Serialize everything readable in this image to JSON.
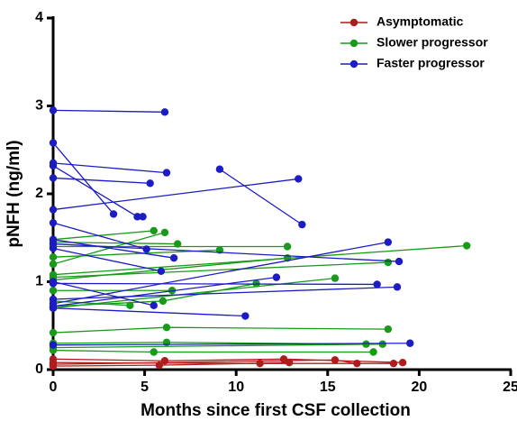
{
  "chart_data": {
    "type": "line",
    "xlabel": "Months since first CSF collection",
    "ylabel": "pNFH (ng/ml)",
    "xlim": [
      0,
      25
    ],
    "xticks": [
      0,
      5,
      10,
      15,
      20,
      25
    ],
    "ylim": [
      0,
      4
    ],
    "yticks": [
      0,
      1,
      2,
      3,
      4
    ],
    "legend": "upper right",
    "series": [
      {
        "name": "Asymptomatic",
        "color": "#b01c1c",
        "subjects": [
          {
            "x": [
              0,
              6.1,
              12.6,
              19.1
            ],
            "values": [
              0.12,
              0.1,
              0.12,
              0.08
            ]
          },
          {
            "x": [
              0,
              11.3,
              18.6
            ],
            "values": [
              0.08,
              0.07,
              0.07
            ]
          },
          {
            "x": [
              0,
              15.4,
              16.6
            ],
            "values": [
              0.06,
              0.11,
              0.07
            ]
          },
          {
            "x": [
              0,
              5.8,
              12.9
            ],
            "values": [
              0.04,
              0.05,
              0.08
            ]
          }
        ]
      },
      {
        "name": "Slower progressor",
        "color": "#1a9a1a",
        "subjects": [
          {
            "x": [
              0,
              5.5
            ],
            "values": [
              1.48,
              1.58
            ]
          },
          {
            "x": [
              0,
              6.1
            ],
            "values": [
              1.2,
              1.56
            ]
          },
          {
            "x": [
              0,
              6.8
            ],
            "values": [
              1.45,
              1.43
            ]
          },
          {
            "x": [
              0,
              12.8
            ],
            "values": [
              1.4,
              1.4
            ]
          },
          {
            "x": [
              0,
              9.1
            ],
            "values": [
              1.28,
              1.36
            ]
          },
          {
            "x": [
              0,
              22.6
            ],
            "values": [
              1.08,
              1.41
            ]
          },
          {
            "x": [
              0,
              18.3
            ],
            "values": [
              1.05,
              1.22
            ]
          },
          {
            "x": [
              0,
              12.8
            ],
            "values": [
              1.02,
              1.27
            ]
          },
          {
            "x": [
              0,
              6.5
            ],
            "values": [
              0.9,
              0.9
            ]
          },
          {
            "x": [
              0,
              4.2
            ],
            "values": [
              0.78,
              0.73
            ]
          },
          {
            "x": [
              0,
              6,
              11.1
            ],
            "values": [
              0.72,
              0.78,
              0.98
            ]
          },
          {
            "x": [
              0,
              15.4
            ],
            "values": [
              0.7,
              1.04
            ]
          },
          {
            "x": [
              0,
              6.2,
              18.3
            ],
            "values": [
              0.42,
              0.48,
              0.46
            ]
          },
          {
            "x": [
              0,
              6.2,
              17.1
            ],
            "values": [
              0.3,
              0.31,
              0.29
            ]
          },
          {
            "x": [
              0,
              18
            ],
            "values": [
              0.25,
              0.29
            ]
          },
          {
            "x": [
              0,
              5.5,
              17.5
            ],
            "values": [
              0.22,
              0.2,
              0.2
            ]
          }
        ]
      },
      {
        "name": "Faster progressor",
        "color": "#1c1cc4",
        "subjects": [
          {
            "x": [
              0,
              6.1
            ],
            "values": [
              2.95,
              2.93
            ]
          },
          {
            "x": [
              0,
              3.3
            ],
            "values": [
              2.58,
              1.77
            ]
          },
          {
            "x": [
              0,
              6.2
            ],
            "values": [
              2.35,
              2.24
            ]
          },
          {
            "x": [
              0,
              4.6,
              4.9
            ],
            "values": [
              2.32,
              1.74,
              1.74
            ]
          },
          {
            "x": [
              0,
              5.3
            ],
            "values": [
              2.18,
              2.12
            ]
          },
          {
            "x": [
              0,
              13.4
            ],
            "values": [
              1.82,
              2.17
            ]
          },
          {
            "x": [
              9.1,
              13.6
            ],
            "values": [
              2.28,
              1.65
            ]
          },
          {
            "x": [
              0,
              5.1
            ],
            "values": [
              1.67,
              1.37
            ]
          },
          {
            "x": [
              0,
              6.6
            ],
            "values": [
              1.48,
              1.27
            ]
          },
          {
            "x": [
              0,
              18.9
            ],
            "values": [
              1.43,
              1.23
            ]
          },
          {
            "x": [
              0,
              5.9
            ],
            "values": [
              1.38,
              1.12
            ]
          },
          {
            "x": [
              0,
              5.5
            ],
            "values": [
              1.0,
              0.73
            ]
          },
          {
            "x": [
              0,
              17.7
            ],
            "values": [
              0.98,
              0.97
            ]
          },
          {
            "x": [
              0,
              10.5
            ],
            "values": [
              0.7,
              0.61
            ]
          },
          {
            "x": [
              0,
              18.3
            ],
            "values": [
              0.75,
              1.45
            ]
          },
          {
            "x": [
              0,
              12.2
            ],
            "values": [
              0.72,
              1.05
            ]
          },
          {
            "x": [
              0,
              18.8
            ],
            "values": [
              0.8,
              0.94
            ]
          },
          {
            "x": [
              0,
              19.5
            ],
            "values": [
              0.28,
              0.3
            ]
          }
        ]
      }
    ]
  }
}
